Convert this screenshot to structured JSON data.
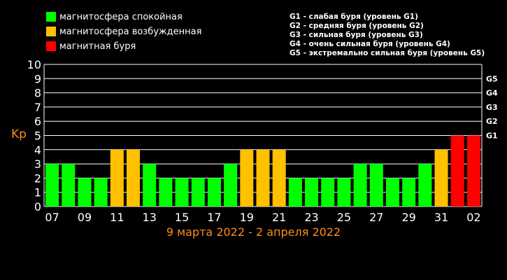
{
  "legend": [
    {
      "label": "магнитосфера спокойная",
      "color": "#00ff00"
    },
    {
      "label": "магнитосфера возбужденная",
      "color": "#ffc000"
    },
    {
      "label": "магнитная буря",
      "color": "#ff0000"
    }
  ],
  "g_legend": [
    "G1 - слабая буря (уровень G1)",
    "G2 - средняя буря (уровень G2)",
    "G3 - сильная буря (уровень G3)",
    "G4 - очень сильная буря (уровень G4)",
    "G5 - экстремально сильная буря (уровень G5)"
  ],
  "chart_data": {
    "type": "bar",
    "ylabel": "Kp",
    "xlabel": "9 марта 2022 - 2 апреля 2022",
    "ylim": [
      0,
      10
    ],
    "y_ticks": [
      "0",
      "1",
      "2",
      "3",
      "4",
      "5",
      "6",
      "7",
      "8",
      "9",
      "10"
    ],
    "g_levels": [
      {
        "label": "G1",
        "value": 5
      },
      {
        "label": "G2",
        "value": 6
      },
      {
        "label": "G3",
        "value": 7
      },
      {
        "label": "G4",
        "value": 8
      },
      {
        "label": "G5",
        "value": 9
      }
    ],
    "x_tick_labels": [
      "07",
      "09",
      "11",
      "13",
      "15",
      "17",
      "19",
      "21",
      "23",
      "25",
      "27",
      "29",
      "31",
      "02"
    ],
    "values": [
      3,
      3,
      2,
      2,
      4,
      4,
      3,
      2,
      2,
      2,
      2,
      3,
      4,
      4,
      4,
      2,
      2,
      2,
      2,
      3,
      3,
      2,
      2,
      3,
      4,
      5,
      5
    ],
    "status_colors": {
      "quiet": "#00ff00",
      "active": "#ffc000",
      "storm": "#ff0000"
    }
  }
}
